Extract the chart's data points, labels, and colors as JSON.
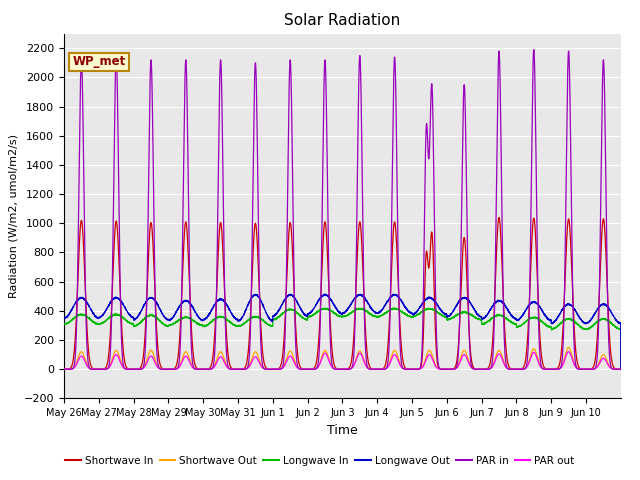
{
  "title": "Solar Radiation",
  "xlabel": "Time",
  "ylabel": "Radiation (W/m2, umol/m2/s)",
  "ylim": [
    -200,
    2300
  ],
  "yticks": [
    -200,
    0,
    200,
    400,
    600,
    800,
    1000,
    1200,
    1400,
    1600,
    1800,
    2000,
    2200
  ],
  "xtick_labels": [
    "May 26",
    "May 27",
    "May 28",
    "May 29",
    "May 30",
    "May 31",
    "Jun 1",
    "Jun 2",
    "Jun 3",
    "Jun 4",
    "Jun 5",
    "Jun 6",
    "Jun 7",
    "Jun 8",
    "Jun 9",
    "Jun 10"
  ],
  "annotation_text": "WP_met",
  "annotation_color": "#8B0000",
  "annotation_bg": "#FFFACD",
  "annotation_border": "#B8860B",
  "bg_color": "#E8E8E8",
  "grid_color": "white",
  "colors": {
    "shortwave_in": "#CC0000",
    "shortwave_out": "#FFA500",
    "longwave_in": "#00BB00",
    "longwave_out": "#0000CC",
    "par_in": "#9900BB",
    "par_out": "#FF00FF"
  },
  "legend": [
    {
      "label": "Shortwave In",
      "color": "#CC0000"
    },
    {
      "label": "Shortwave Out",
      "color": "#FFA500"
    },
    {
      "label": "Longwave In",
      "color": "#00BB00"
    },
    {
      "label": "Longwave Out",
      "color": "#0000CC"
    },
    {
      "label": "PAR in",
      "color": "#9900BB"
    },
    {
      "label": "PAR out",
      "color": "#FF00FF"
    }
  ],
  "n_days": 16,
  "pts_per_day": 288,
  "shortwave_in_peaks": [
    1020,
    1015,
    1005,
    1010,
    1005,
    1000,
    1005,
    1010,
    1010,
    1010,
    1010,
    960,
    1040,
    1035,
    1030,
    1030
  ],
  "shortwave_out_peaks": [
    120,
    130,
    130,
    120,
    120,
    120,
    125,
    130,
    125,
    130,
    130,
    130,
    130,
    140,
    150,
    100
  ],
  "longwave_in_base": [
    310,
    310,
    295,
    300,
    295,
    295,
    340,
    360,
    360,
    360,
    360,
    340,
    310,
    290,
    275,
    275
  ],
  "longwave_in_peak": [
    375,
    375,
    370,
    355,
    360,
    360,
    410,
    415,
    415,
    415,
    415,
    390,
    370,
    355,
    345,
    345
  ],
  "longwave_out_base": [
    350,
    355,
    340,
    335,
    340,
    330,
    365,
    380,
    385,
    385,
    375,
    360,
    345,
    335,
    315,
    315
  ],
  "longwave_out_peak": [
    490,
    490,
    490,
    470,
    480,
    510,
    510,
    510,
    510,
    510,
    490,
    490,
    470,
    460,
    445,
    445
  ],
  "par_in_peaks": [
    2120,
    2140,
    2120,
    2120,
    2120,
    2100,
    2120,
    2120,
    2150,
    2140,
    2100,
    2100,
    2180,
    2190,
    2180,
    2120
  ],
  "par_out_peaks": [
    90,
    100,
    90,
    90,
    85,
    85,
    90,
    110,
    110,
    100,
    100,
    100,
    105,
    115,
    120,
    75
  ],
  "jun5_double_peak": true,
  "jun6_low_peak": 1950
}
